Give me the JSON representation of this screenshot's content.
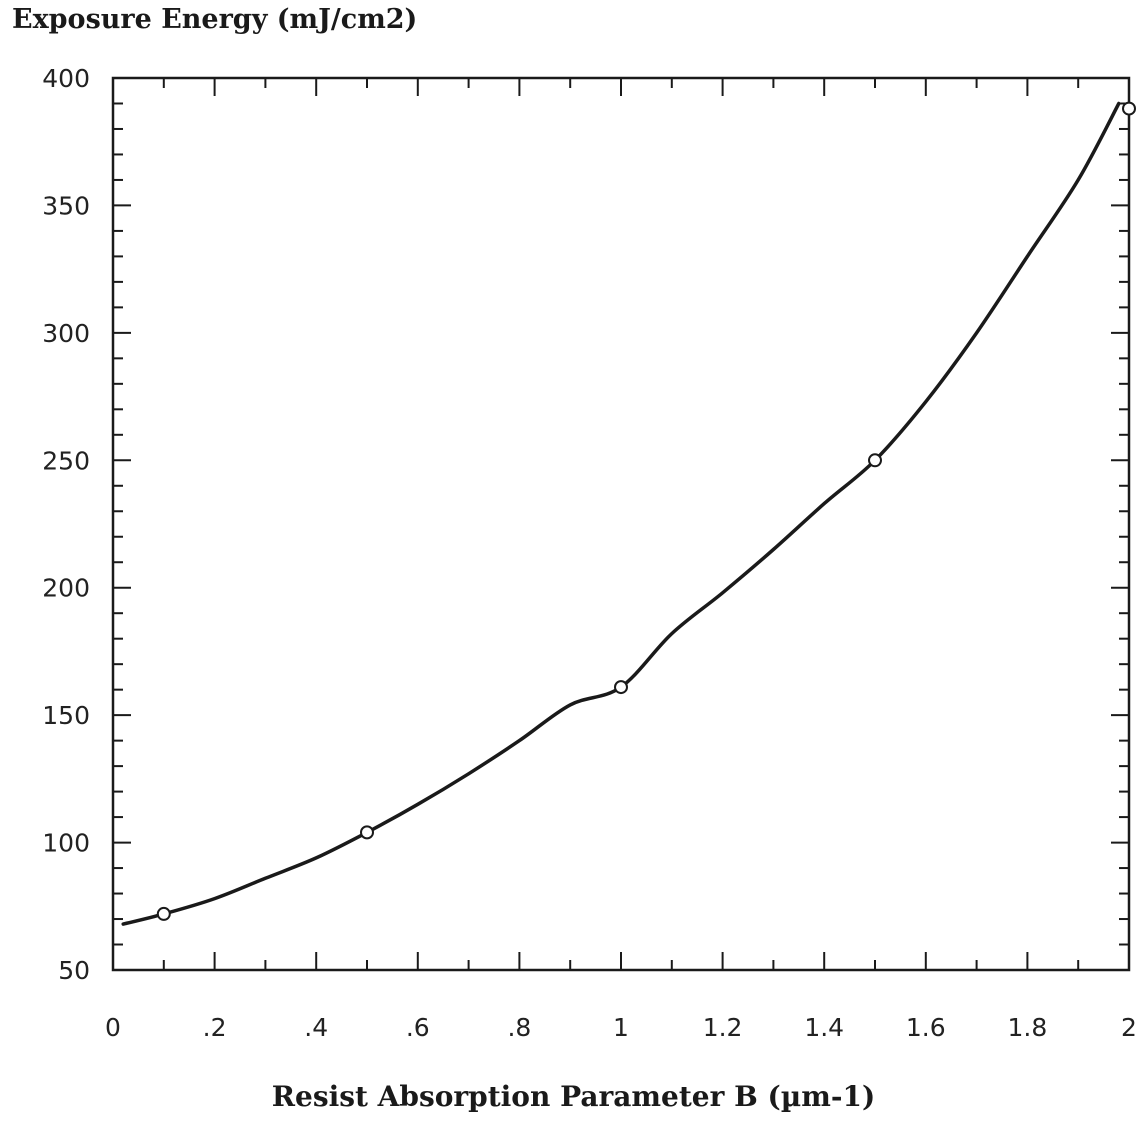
{
  "chart_data": {
    "type": "scatter",
    "ylabel": "Exposure Energy (mJ/cm2)",
    "xlabel": "Resist Absorption Parameter B (µm-1)",
    "xlim": [
      0,
      2
    ],
    "ylim": [
      50,
      400
    ],
    "x_tick_labels": [
      "0",
      ".2",
      ".4",
      ".6",
      ".8",
      "1",
      "1.2",
      "1.4",
      "1.6",
      "1.8",
      "2"
    ],
    "x_tick_values": [
      0,
      0.2,
      0.4,
      0.6,
      0.8,
      1.0,
      1.2,
      1.4,
      1.6,
      1.8,
      2.0
    ],
    "y_tick_labels": [
      "50",
      "100",
      "150",
      "200",
      "250",
      "300",
      "350",
      "400"
    ],
    "y_tick_values": [
      50,
      100,
      150,
      200,
      250,
      300,
      350,
      400
    ],
    "grid": false,
    "series": [
      {
        "marker": "open-circle",
        "x": [
          0.1,
          0.5,
          1.0,
          1.5,
          2.0
        ],
        "y": [
          72,
          104,
          161,
          250,
          388
        ]
      },
      {
        "style": "smooth-fit-line",
        "x": [
          0.02,
          0.1,
          0.2,
          0.3,
          0.4,
          0.5,
          0.6,
          0.7,
          0.8,
          0.9,
          1.0,
          1.1,
          1.2,
          1.3,
          1.4,
          1.5,
          1.6,
          1.7,
          1.8,
          1.9,
          1.98
        ],
        "y": [
          68,
          72,
          78,
          86,
          94,
          104,
          115,
          127,
          140,
          154,
          161,
          182,
          198,
          215,
          233,
          250,
          273,
          300,
          330,
          360,
          390
        ]
      }
    ],
    "colors": {
      "line": "#1a1a1a",
      "axis": "#1a1a1a",
      "background": "#ffffff"
    }
  }
}
